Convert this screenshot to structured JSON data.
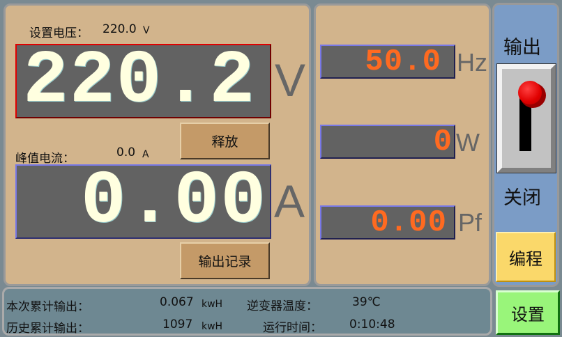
{
  "voltage": {
    "set_label": "设置电压：",
    "set_value": "220.0",
    "set_unit": "V",
    "display": "220.2",
    "unit": "V",
    "release_button": "释放"
  },
  "current": {
    "peak_label": "峰值电流：",
    "peak_value": "0.0",
    "peak_unit": "A",
    "display": "0.00",
    "unit": "A",
    "record_button": "输出记录"
  },
  "meters": [
    {
      "value": "50.0",
      "unit": "Hz"
    },
    {
      "value": "0",
      "unit": "W"
    },
    {
      "value": "0.00",
      "unit": "Pf"
    }
  ],
  "output": {
    "title": "输出",
    "state": "关闭",
    "switch_on": false,
    "program_button": "编程",
    "settings_button": "设置"
  },
  "status": {
    "session_output_label": "本次累计输出：",
    "session_output_value": "0.067",
    "session_output_unit": "kwH",
    "total_output_label": "历史累计输出：",
    "total_output_value": "1097",
    "total_output_unit": "kwH",
    "inverter_temp_label": "逆变器温度：",
    "inverter_temp_value": "39℃",
    "runtime_label": "运行时间：",
    "runtime_value": "0:10:48"
  },
  "colors": {
    "big_digits": "#ffffe0",
    "meter_digits": "#ff6a20",
    "panel": "#d2b48c",
    "voltage_border": "#e00000",
    "current_border": "#7070e0"
  }
}
